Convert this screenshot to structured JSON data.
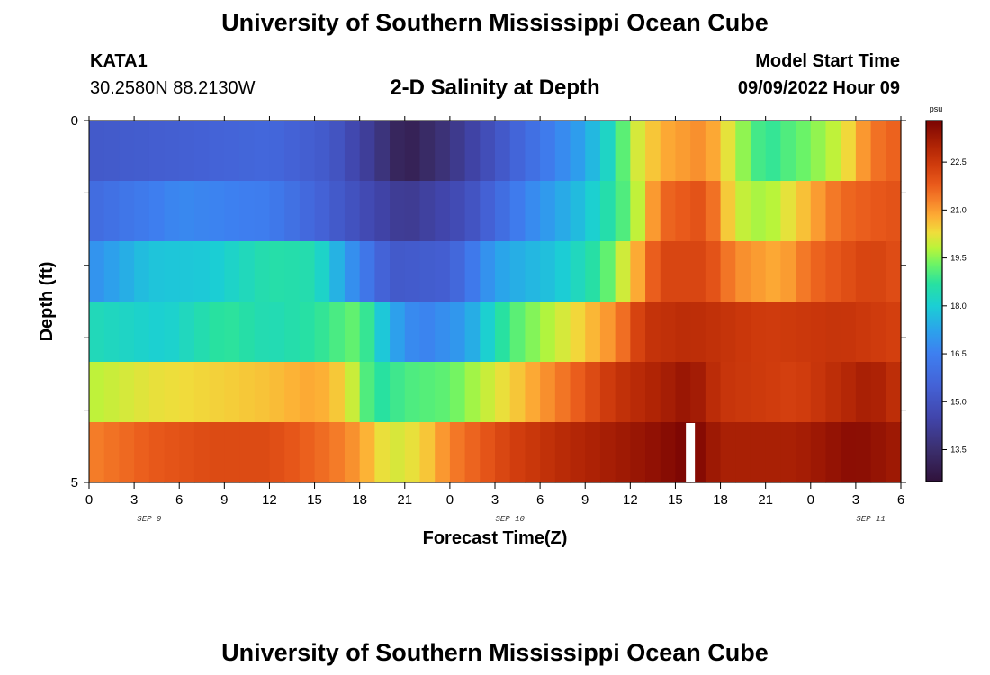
{
  "header": {
    "title": "University of Southern Mississippi Ocean Cube",
    "station": "KATA1",
    "coordinates": "30.2580N  88.2130W",
    "subtitle": "2-D Salinity at Depth",
    "model_start_label": "Model Start Time",
    "model_start_value": "09/09/2022 Hour 09"
  },
  "footer": {
    "title": "University of Southern Mississippi Ocean Cube"
  },
  "chart_data": {
    "type": "heatmap",
    "title": "2-D Salinity at Depth",
    "xlabel": "Forecast Time(Z)",
    "ylabel": "Depth (ft)",
    "x_tick_labels": [
      "0",
      "3",
      "6",
      "9",
      "12",
      "15",
      "18",
      "21",
      "0",
      "3",
      "6",
      "9",
      "12",
      "15",
      "18",
      "21",
      "0",
      "3",
      "6"
    ],
    "x_day_labels": [
      {
        "label": "SEP 9",
        "at_hour": 4
      },
      {
        "label": "SEP 10",
        "at_hour": 28
      },
      {
        "label": "SEP 11",
        "at_hour": 52
      }
    ],
    "x_range_hours": [
      0,
      54
    ],
    "y_tick_labels": [
      "0",
      "5"
    ],
    "y_range": [
      0,
      5
    ],
    "colorbar": {
      "unit": "psu",
      "ticks": [
        "22.5",
        "21.0",
        "19.5",
        "18.0",
        "16.5",
        "15.0",
        "13.5"
      ],
      "tick_values": [
        22.5,
        21.0,
        19.5,
        18.0,
        16.5,
        15.0,
        13.5
      ],
      "range": [
        12.5,
        23.8
      ]
    },
    "color_scale": [
      [
        12.5,
        "#30123b"
      ],
      [
        13.5,
        "#3b2f6e"
      ],
      [
        14.5,
        "#4145ab"
      ],
      [
        15.5,
        "#4462d6"
      ],
      [
        16.5,
        "#3e7ff0"
      ],
      [
        17.2,
        "#2ca1ec"
      ],
      [
        18.0,
        "#1bcfd4"
      ],
      [
        18.7,
        "#28e1a0"
      ],
      [
        19.3,
        "#6cf466"
      ],
      [
        19.8,
        "#b9f43a"
      ],
      [
        20.3,
        "#f0dd3b"
      ],
      [
        20.8,
        "#fdae35"
      ],
      [
        21.3,
        "#f6812a"
      ],
      [
        21.8,
        "#e95a1b"
      ],
      [
        22.4,
        "#d03c0d"
      ],
      [
        23.0,
        "#b02405"
      ],
      [
        23.8,
        "#7a0403"
      ]
    ],
    "depth_rows": [
      {
        "name": "row-1",
        "keyframes": [
          [
            0,
            15.2
          ],
          [
            6,
            15.4
          ],
          [
            12,
            15.7
          ],
          [
            16,
            15.2
          ],
          [
            19,
            14.0
          ],
          [
            21,
            12.9
          ],
          [
            24,
            13.8
          ],
          [
            29,
            15.8
          ],
          [
            33,
            17.3
          ],
          [
            35,
            18.5
          ],
          [
            36,
            19.8
          ],
          [
            38,
            20.8
          ],
          [
            41,
            21.2
          ],
          [
            44,
            19.2
          ],
          [
            45,
            18.7
          ],
          [
            48,
            19.4
          ],
          [
            50,
            20.0
          ],
          [
            52,
            21.4
          ],
          [
            54,
            21.8
          ]
        ]
      },
      {
        "name": "row-2",
        "keyframes": [
          [
            0,
            15.8
          ],
          [
            6,
            16.7
          ],
          [
            12,
            16.4
          ],
          [
            17,
            15.1
          ],
          [
            21,
            14.0
          ],
          [
            25,
            14.8
          ],
          [
            29,
            16.6
          ],
          [
            33,
            17.8
          ],
          [
            36,
            19.3
          ],
          [
            38,
            21.6
          ],
          [
            41,
            22.0
          ],
          [
            43,
            20.0
          ],
          [
            45,
            19.6
          ],
          [
            48,
            20.8
          ],
          [
            50,
            21.6
          ],
          [
            54,
            22.0
          ]
        ]
      },
      {
        "name": "row-3",
        "keyframes": [
          [
            0,
            16.8
          ],
          [
            4,
            17.8
          ],
          [
            8,
            17.9
          ],
          [
            12,
            18.6
          ],
          [
            15,
            18.5
          ],
          [
            18,
            16.5
          ],
          [
            20,
            15.2
          ],
          [
            24,
            15.4
          ],
          [
            27,
            17.2
          ],
          [
            31,
            17.8
          ],
          [
            34,
            18.8
          ],
          [
            36,
            20.4
          ],
          [
            38,
            22.2
          ],
          [
            41,
            22.2
          ],
          [
            43,
            21.2
          ],
          [
            46,
            20.8
          ],
          [
            48,
            21.6
          ],
          [
            52,
            22.3
          ],
          [
            54,
            22.0
          ]
        ]
      },
      {
        "name": "row-4",
        "keyframes": [
          [
            0,
            18.4
          ],
          [
            5,
            18.0
          ],
          [
            9,
            18.8
          ],
          [
            12,
            18.4
          ],
          [
            15,
            18.7
          ],
          [
            18,
            19.3
          ],
          [
            20,
            17.4
          ],
          [
            22,
            16.5
          ],
          [
            25,
            17.1
          ],
          [
            28,
            19.0
          ],
          [
            32,
            20.2
          ],
          [
            35,
            21.2
          ],
          [
            37,
            22.6
          ],
          [
            40,
            22.8
          ],
          [
            45,
            22.4
          ],
          [
            50,
            22.6
          ],
          [
            54,
            22.3
          ]
        ]
      },
      {
        "name": "row-5",
        "keyframes": [
          [
            0,
            19.8
          ],
          [
            4,
            20.2
          ],
          [
            8,
            20.4
          ],
          [
            12,
            20.6
          ],
          [
            15,
            20.9
          ],
          [
            17,
            20.4
          ],
          [
            19,
            18.6
          ],
          [
            21,
            19.0
          ],
          [
            24,
            19.2
          ],
          [
            28,
            20.4
          ],
          [
            32,
            21.6
          ],
          [
            35,
            22.6
          ],
          [
            40,
            23.4
          ],
          [
            42,
            22.6
          ],
          [
            47,
            22.3
          ],
          [
            52,
            23.2
          ],
          [
            54,
            22.6
          ]
        ]
      },
      {
        "name": "row-6",
        "keyframes": [
          [
            0,
            21.3
          ],
          [
            4,
            21.8
          ],
          [
            8,
            22.1
          ],
          [
            12,
            22.1
          ],
          [
            16,
            21.5
          ],
          [
            18,
            21.0
          ],
          [
            20,
            20.0
          ],
          [
            22,
            20.3
          ],
          [
            24,
            21.3
          ],
          [
            28,
            22.3
          ],
          [
            32,
            22.9
          ],
          [
            37,
            23.4
          ],
          [
            40,
            23.8
          ],
          [
            42,
            23.1
          ],
          [
            47,
            23.1
          ],
          [
            51,
            23.6
          ],
          [
            54,
            23.2
          ]
        ]
      }
    ],
    "missing_cells": [
      {
        "row": 6,
        "at_hour": 40
      }
    ]
  }
}
